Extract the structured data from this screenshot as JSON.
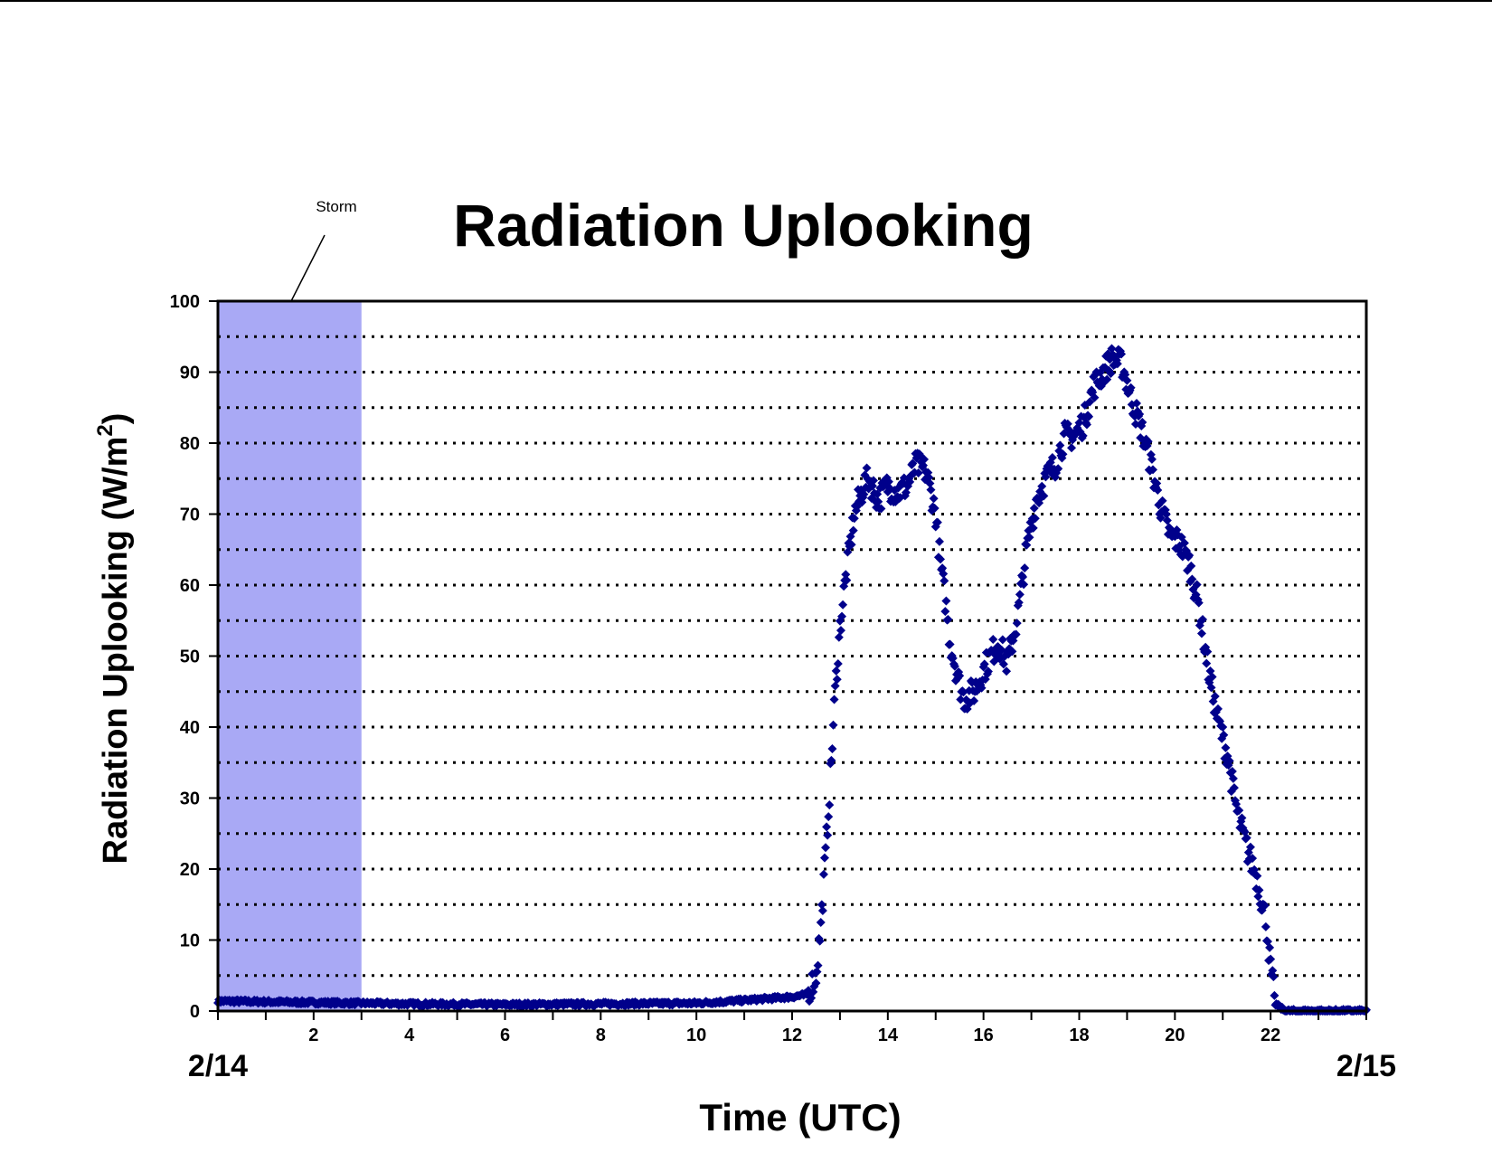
{
  "chart_data": {
    "type": "scatter",
    "title": "Radiation Uplooking",
    "xlabel": "Time (UTC)",
    "ylabel_main": "Radiation Uplooking (W/m",
    "ylabel_sup": "2",
    "ylabel_close": ")",
    "xlim": [
      0,
      24
    ],
    "ylim": [
      0,
      100
    ],
    "x_ticks": [
      2,
      4,
      6,
      8,
      10,
      12,
      14,
      16,
      18,
      20,
      22
    ],
    "y_ticks": [
      0,
      10,
      20,
      30,
      40,
      50,
      60,
      70,
      80,
      90,
      100
    ],
    "date_labels": {
      "start": "2/14",
      "end": "2/15"
    },
    "grid": "dotted horizontal every 5",
    "annotation": {
      "text": "Storm",
      "x_start": 0,
      "x_end": 3
    },
    "colors": {
      "series": "#00008B",
      "storm": "#A9A9F5",
      "grid": "#000000"
    },
    "series_profile": [
      [
        0,
        1.4
      ],
      [
        1,
        1.3
      ],
      [
        2,
        1.2
      ],
      [
        3,
        1.1
      ],
      [
        4,
        1.0
      ],
      [
        6,
        0.9
      ],
      [
        8,
        1.0
      ],
      [
        10,
        1.1
      ],
      [
        11,
        1.5
      ],
      [
        12,
        2.0
      ],
      [
        12.3,
        2.3
      ],
      [
        12.5,
        5
      ],
      [
        12.6,
        12
      ],
      [
        12.7,
        22
      ],
      [
        12.8,
        33
      ],
      [
        12.9,
        45
      ],
      [
        13.0,
        54
      ],
      [
        13.1,
        60
      ],
      [
        13.2,
        65
      ],
      [
        13.3,
        70
      ],
      [
        13.5,
        74
      ],
      [
        13.6,
        75
      ],
      [
        13.8,
        72
      ],
      [
        14.0,
        74
      ],
      [
        14.2,
        73
      ],
      [
        14.4,
        74
      ],
      [
        14.6,
        77
      ],
      [
        14.8,
        76
      ],
      [
        15.0,
        70
      ],
      [
        15.1,
        63
      ],
      [
        15.2,
        58
      ],
      [
        15.3,
        52
      ],
      [
        15.5,
        46
      ],
      [
        15.6,
        44
      ],
      [
        15.8,
        45
      ],
      [
        16.0,
        48
      ],
      [
        16.3,
        52
      ],
      [
        16.5,
        49
      ],
      [
        16.7,
        55
      ],
      [
        16.9,
        65
      ],
      [
        17.1,
        72
      ],
      [
        17.3,
        75
      ],
      [
        17.5,
        77
      ],
      [
        17.7,
        81
      ],
      [
        17.9,
        81
      ],
      [
        18.1,
        83
      ],
      [
        18.3,
        88
      ],
      [
        18.5,
        90
      ],
      [
        18.7,
        92
      ],
      [
        18.9,
        91
      ],
      [
        19.1,
        86
      ],
      [
        19.3,
        82
      ],
      [
        19.5,
        77
      ],
      [
        19.7,
        71
      ],
      [
        19.9,
        67
      ],
      [
        20.1,
        66
      ],
      [
        20.3,
        63
      ],
      [
        20.5,
        57
      ],
      [
        20.7,
        48
      ],
      [
        20.9,
        41
      ],
      [
        21.1,
        36
      ],
      [
        21.3,
        28
      ],
      [
        21.5,
        23
      ],
      [
        21.7,
        19
      ],
      [
        21.9,
        13
      ],
      [
        22.0,
        6
      ],
      [
        22.1,
        1
      ],
      [
        22.3,
        0
      ],
      [
        24,
        0
      ]
    ],
    "series_noise": 1.2
  }
}
